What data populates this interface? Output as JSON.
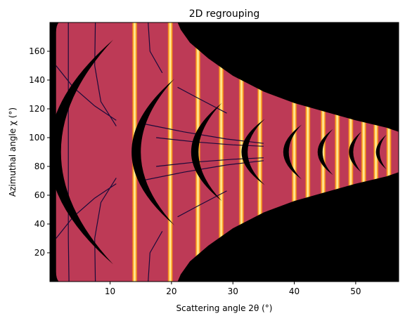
{
  "chart_data": {
    "type": "heatmap",
    "title": "2D regrouping",
    "xlabel": "Scattering angle 2θ (°)",
    "ylabel": "Azimuthal angle χ (°)",
    "xlim": [
      0.2,
      57
    ],
    "ylim": [
      0,
      180
    ],
    "x_ticks": [
      10,
      20,
      30,
      40,
      50
    ],
    "y_ticks": [
      20,
      40,
      60,
      80,
      100,
      120,
      140,
      160
    ],
    "grid": false,
    "legend": "none",
    "colormap": "inferno",
    "colors": {
      "background": "#bd3a56",
      "mask": "#000000",
      "ring_edge": "#ff9a10",
      "ring_core": "#fff8b0",
      "line": "#1a0a3a"
    },
    "rings_two_theta": [
      14,
      19.8,
      24.3,
      28.1,
      31.4,
      34.4,
      40,
      42.2,
      44.7,
      47,
      49.2,
      51.3,
      53.3,
      55.4
    ],
    "valid_region_boundary": {
      "top": [
        {
          "x": 21,
          "y": 180
        },
        {
          "x": 21.5,
          "y": 175
        },
        {
          "x": 23,
          "y": 166
        },
        {
          "x": 26,
          "y": 155
        },
        {
          "x": 30,
          "y": 143
        },
        {
          "x": 35,
          "y": 132
        },
        {
          "x": 40,
          "y": 124
        },
        {
          "x": 45,
          "y": 118
        },
        {
          "x": 50,
          "y": 112
        },
        {
          "x": 55,
          "y": 107
        },
        {
          "x": 57,
          "y": 104
        }
      ],
      "bottom": [
        {
          "x": 21,
          "y": 0
        },
        {
          "x": 21.5,
          "y": 5
        },
        {
          "x": 23,
          "y": 14
        },
        {
          "x": 26,
          "y": 25
        },
        {
          "x": 30,
          "y": 37
        },
        {
          "x": 35,
          "y": 48
        },
        {
          "x": 40,
          "y": 56
        },
        {
          "x": 45,
          "y": 62
        },
        {
          "x": 50,
          "y": 68
        },
        {
          "x": 55,
          "y": 73
        },
        {
          "x": 57,
          "y": 76
        }
      ]
    },
    "shadow_arcs": [
      {
        "x_center": 10.5,
        "y_top": 168,
        "y_bottom": 12,
        "extent": 10.5,
        "thickness": 2.0
      },
      {
        "x_center": 20.5,
        "y_top": 141,
        "y_bottom": 39,
        "extent": 7.0,
        "thickness": 1.5
      },
      {
        "x_center": 28.2,
        "y_top": 124,
        "y_bottom": 56,
        "extent": 5.0,
        "thickness": 1.2
      },
      {
        "x_center": 35.2,
        "y_top": 113,
        "y_bottom": 67,
        "extent": 3.8,
        "thickness": 1.0
      },
      {
        "x_center": 41.2,
        "y_top": 109,
        "y_bottom": 71,
        "extent": 3.0,
        "thickness": 0.9
      },
      {
        "x_center": 46.3,
        "y_top": 106,
        "y_bottom": 74,
        "extent": 2.5,
        "thickness": 0.8
      },
      {
        "x_center": 50.9,
        "y_top": 104,
        "y_bottom": 76,
        "extent": 2.0,
        "thickness": 0.7
      },
      {
        "x_center": 55.0,
        "y_top": 102,
        "y_bottom": 78,
        "extent": 1.7,
        "thickness": 0.6
      }
    ],
    "left_mask_strip": {
      "x_start": 0.2,
      "x_end": 1.2
    },
    "dark_lines": [
      {
        "points": [
          {
            "x": 3.2,
            "y": 180
          },
          {
            "x": 3.2,
            "y": 170
          },
          {
            "x": 3.2,
            "y": 150
          },
          {
            "x": 3.2,
            "y": 90
          },
          {
            "x": 3.2,
            "y": 30
          },
          {
            "x": 3.3,
            "y": 0
          }
        ]
      },
      {
        "points": [
          {
            "x": 1.2,
            "y": 150
          },
          {
            "x": 4.0,
            "y": 135
          },
          {
            "x": 7.5,
            "y": 122
          },
          {
            "x": 11.0,
            "y": 112
          }
        ]
      },
      {
        "points": [
          {
            "x": 1.2,
            "y": 30
          },
          {
            "x": 4.0,
            "y": 45
          },
          {
            "x": 7.5,
            "y": 58
          },
          {
            "x": 11.0,
            "y": 68
          }
        ]
      },
      {
        "points": [
          {
            "x": 7.6,
            "y": 180
          },
          {
            "x": 7.5,
            "y": 150
          },
          {
            "x": 8.5,
            "y": 125
          },
          {
            "x": 11.0,
            "y": 108
          }
        ]
      },
      {
        "points": [
          {
            "x": 7.6,
            "y": 0
          },
          {
            "x": 7.5,
            "y": 30
          },
          {
            "x": 8.5,
            "y": 55
          },
          {
            "x": 11.0,
            "y": 72
          }
        ]
      },
      {
        "points": [
          {
            "x": 16.2,
            "y": 180
          },
          {
            "x": 16.5,
            "y": 160
          },
          {
            "x": 18.5,
            "y": 145
          }
        ]
      },
      {
        "points": [
          {
            "x": 16.2,
            "y": 0
          },
          {
            "x": 16.5,
            "y": 20
          },
          {
            "x": 18.5,
            "y": 35
          }
        ]
      },
      {
        "points": [
          {
            "x": 15.0,
            "y": 110
          },
          {
            "x": 22,
            "y": 104
          },
          {
            "x": 29,
            "y": 99
          },
          {
            "x": 35,
            "y": 96
          }
        ]
      },
      {
        "points": [
          {
            "x": 15.0,
            "y": 70
          },
          {
            "x": 22,
            "y": 76
          },
          {
            "x": 29,
            "y": 81
          },
          {
            "x": 35,
            "y": 84
          }
        ]
      },
      {
        "points": [
          {
            "x": 17.5,
            "y": 100
          },
          {
            "x": 24,
            "y": 97
          },
          {
            "x": 30,
            "y": 95
          },
          {
            "x": 35,
            "y": 94
          }
        ]
      },
      {
        "points": [
          {
            "x": 17.5,
            "y": 80
          },
          {
            "x": 24,
            "y": 83
          },
          {
            "x": 30,
            "y": 85
          },
          {
            "x": 35,
            "y": 86
          }
        ]
      },
      {
        "points": [
          {
            "x": 21,
            "y": 135
          },
          {
            "x": 24.5,
            "y": 127
          },
          {
            "x": 29,
            "y": 117
          }
        ]
      },
      {
        "points": [
          {
            "x": 21,
            "y": 45
          },
          {
            "x": 24.5,
            "y": 53
          },
          {
            "x": 29,
            "y": 63
          }
        ]
      }
    ]
  }
}
